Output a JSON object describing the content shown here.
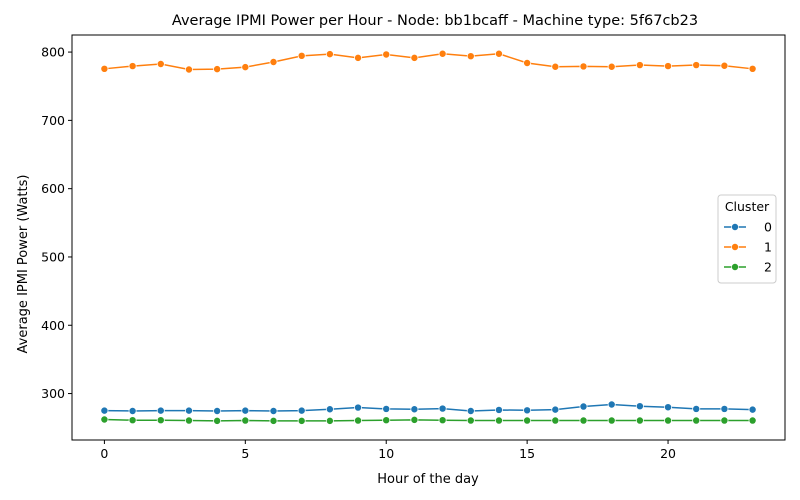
{
  "chart_data": {
    "type": "line",
    "title": "Average IPMI Power per Hour - Node: bb1bcaff - Machine type: 5f67cb23",
    "xlabel": "Hour of the day",
    "ylabel": "Average IPMI Power (Watts)",
    "xlim": [
      -1.15,
      24.15
    ],
    "ylim": [
      232,
      825
    ],
    "xticks": [
      0,
      5,
      10,
      15,
      20
    ],
    "yticks": [
      300,
      400,
      500,
      600,
      700,
      800
    ],
    "grid": false,
    "legend": {
      "title": "Cluster",
      "placement": "center-right"
    },
    "x": [
      0,
      1,
      2,
      3,
      4,
      5,
      6,
      7,
      8,
      9,
      10,
      11,
      12,
      13,
      14,
      15,
      16,
      17,
      18,
      19,
      20,
      21,
      22,
      23
    ],
    "series": [
      {
        "name": "0",
        "color": "#1f77b4",
        "values": [
          275,
          274.5,
          275,
          275,
          274.5,
          275,
          274.5,
          275,
          277,
          279.5,
          277.5,
          277,
          278,
          274.5,
          276,
          275.5,
          276.5,
          281,
          284,
          281.5,
          280,
          277.5,
          277.5,
          276.5
        ]
      },
      {
        "name": "1",
        "color": "#ff7f0e",
        "values": [
          775.5,
          779.5,
          782.5,
          774.5,
          775,
          778,
          785.5,
          794.5,
          797,
          791.5,
          796.5,
          791.5,
          797.5,
          794,
          797.5,
          784,
          778.5,
          779,
          778.5,
          781,
          779.5,
          781,
          780,
          775.5
        ]
      },
      {
        "name": "2",
        "color": "#2ca02c",
        "values": [
          262,
          261,
          261,
          260.5,
          260,
          260.5,
          260,
          260,
          260,
          260.5,
          261,
          261.5,
          261,
          260.5,
          260.5,
          260.5,
          260.5,
          260.5,
          260.5,
          260.5,
          260.5,
          260.5,
          260.5,
          260.5
        ]
      }
    ]
  }
}
